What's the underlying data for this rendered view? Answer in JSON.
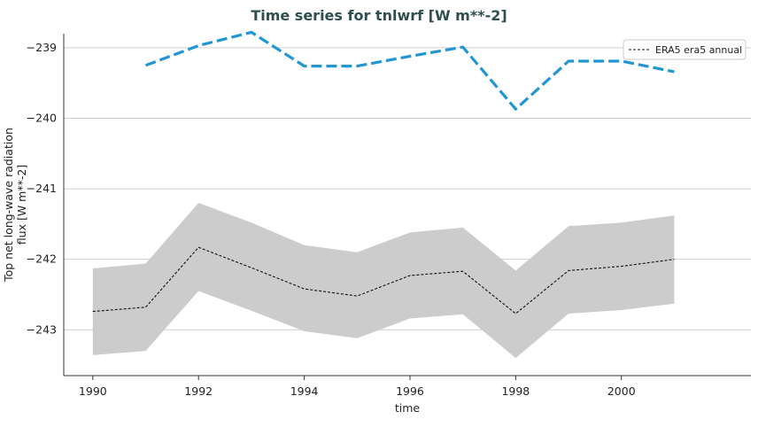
{
  "chart_data": {
    "type": "line",
    "title": "Time series for tnlwrf [W m**-2]",
    "xlabel": "time",
    "ylabel_lines": [
      "Top net long-wave radiation",
      "flux [W m**-2]"
    ],
    "xlim": [
      1989.45,
      2002.45
    ],
    "ylim": [
      -243.65,
      -238.8
    ],
    "x_ticks": [
      1990,
      1992,
      1994,
      1996,
      1998,
      2000
    ],
    "x_tick_labels": [
      "1990",
      "1992",
      "1994",
      "1996",
      "1998",
      "2000"
    ],
    "y_ticks": [
      -239,
      -240,
      -241,
      -242,
      -243
    ],
    "y_tick_labels": [
      "−239",
      "−240",
      "−241",
      "−242",
      "−243"
    ],
    "grid": "horizontal",
    "legend_position": "top-right",
    "legend": [
      "ERA5 era5 annual"
    ],
    "series": [
      {
        "name": "ERA5 era5 annual",
        "style": "dashed",
        "color": "#111111",
        "x": [
          1990,
          1991,
          1992,
          1993,
          1994,
          1995,
          1996,
          1997,
          1998,
          1999,
          2000,
          2001
        ],
        "y": [
          -242.74,
          -242.68,
          -241.83,
          -242.12,
          -242.42,
          -242.52,
          -242.23,
          -242.17,
          -242.77,
          -242.16,
          -242.1,
          -242.0
        ]
      },
      {
        "style": "dashed",
        "color": "#2196d3",
        "x": [
          1991,
          1992,
          1993,
          1994,
          1995,
          1996,
          1997,
          1998,
          1999,
          2000,
          2001
        ],
        "y": [
          -239.25,
          -238.97,
          -238.78,
          -239.26,
          -239.26,
          -239.12,
          -238.99,
          -239.87,
          -239.19,
          -239.19,
          -239.34
        ]
      }
    ],
    "band": {
      "color": "#cccccc",
      "x": [
        1990,
        1991,
        1992,
        1993,
        1994,
        1995,
        1996,
        1997,
        1998,
        1999,
        2000,
        2001
      ],
      "lower": [
        -243.36,
        -243.3,
        -242.45,
        -242.73,
        -243.02,
        -243.12,
        -242.84,
        -242.78,
        -243.4,
        -242.77,
        -242.72,
        -242.63
      ],
      "upper": [
        -242.13,
        -242.06,
        -241.2,
        -241.48,
        -241.8,
        -241.9,
        -241.62,
        -241.55,
        -242.16,
        -241.53,
        -241.48,
        -241.38
      ]
    }
  }
}
